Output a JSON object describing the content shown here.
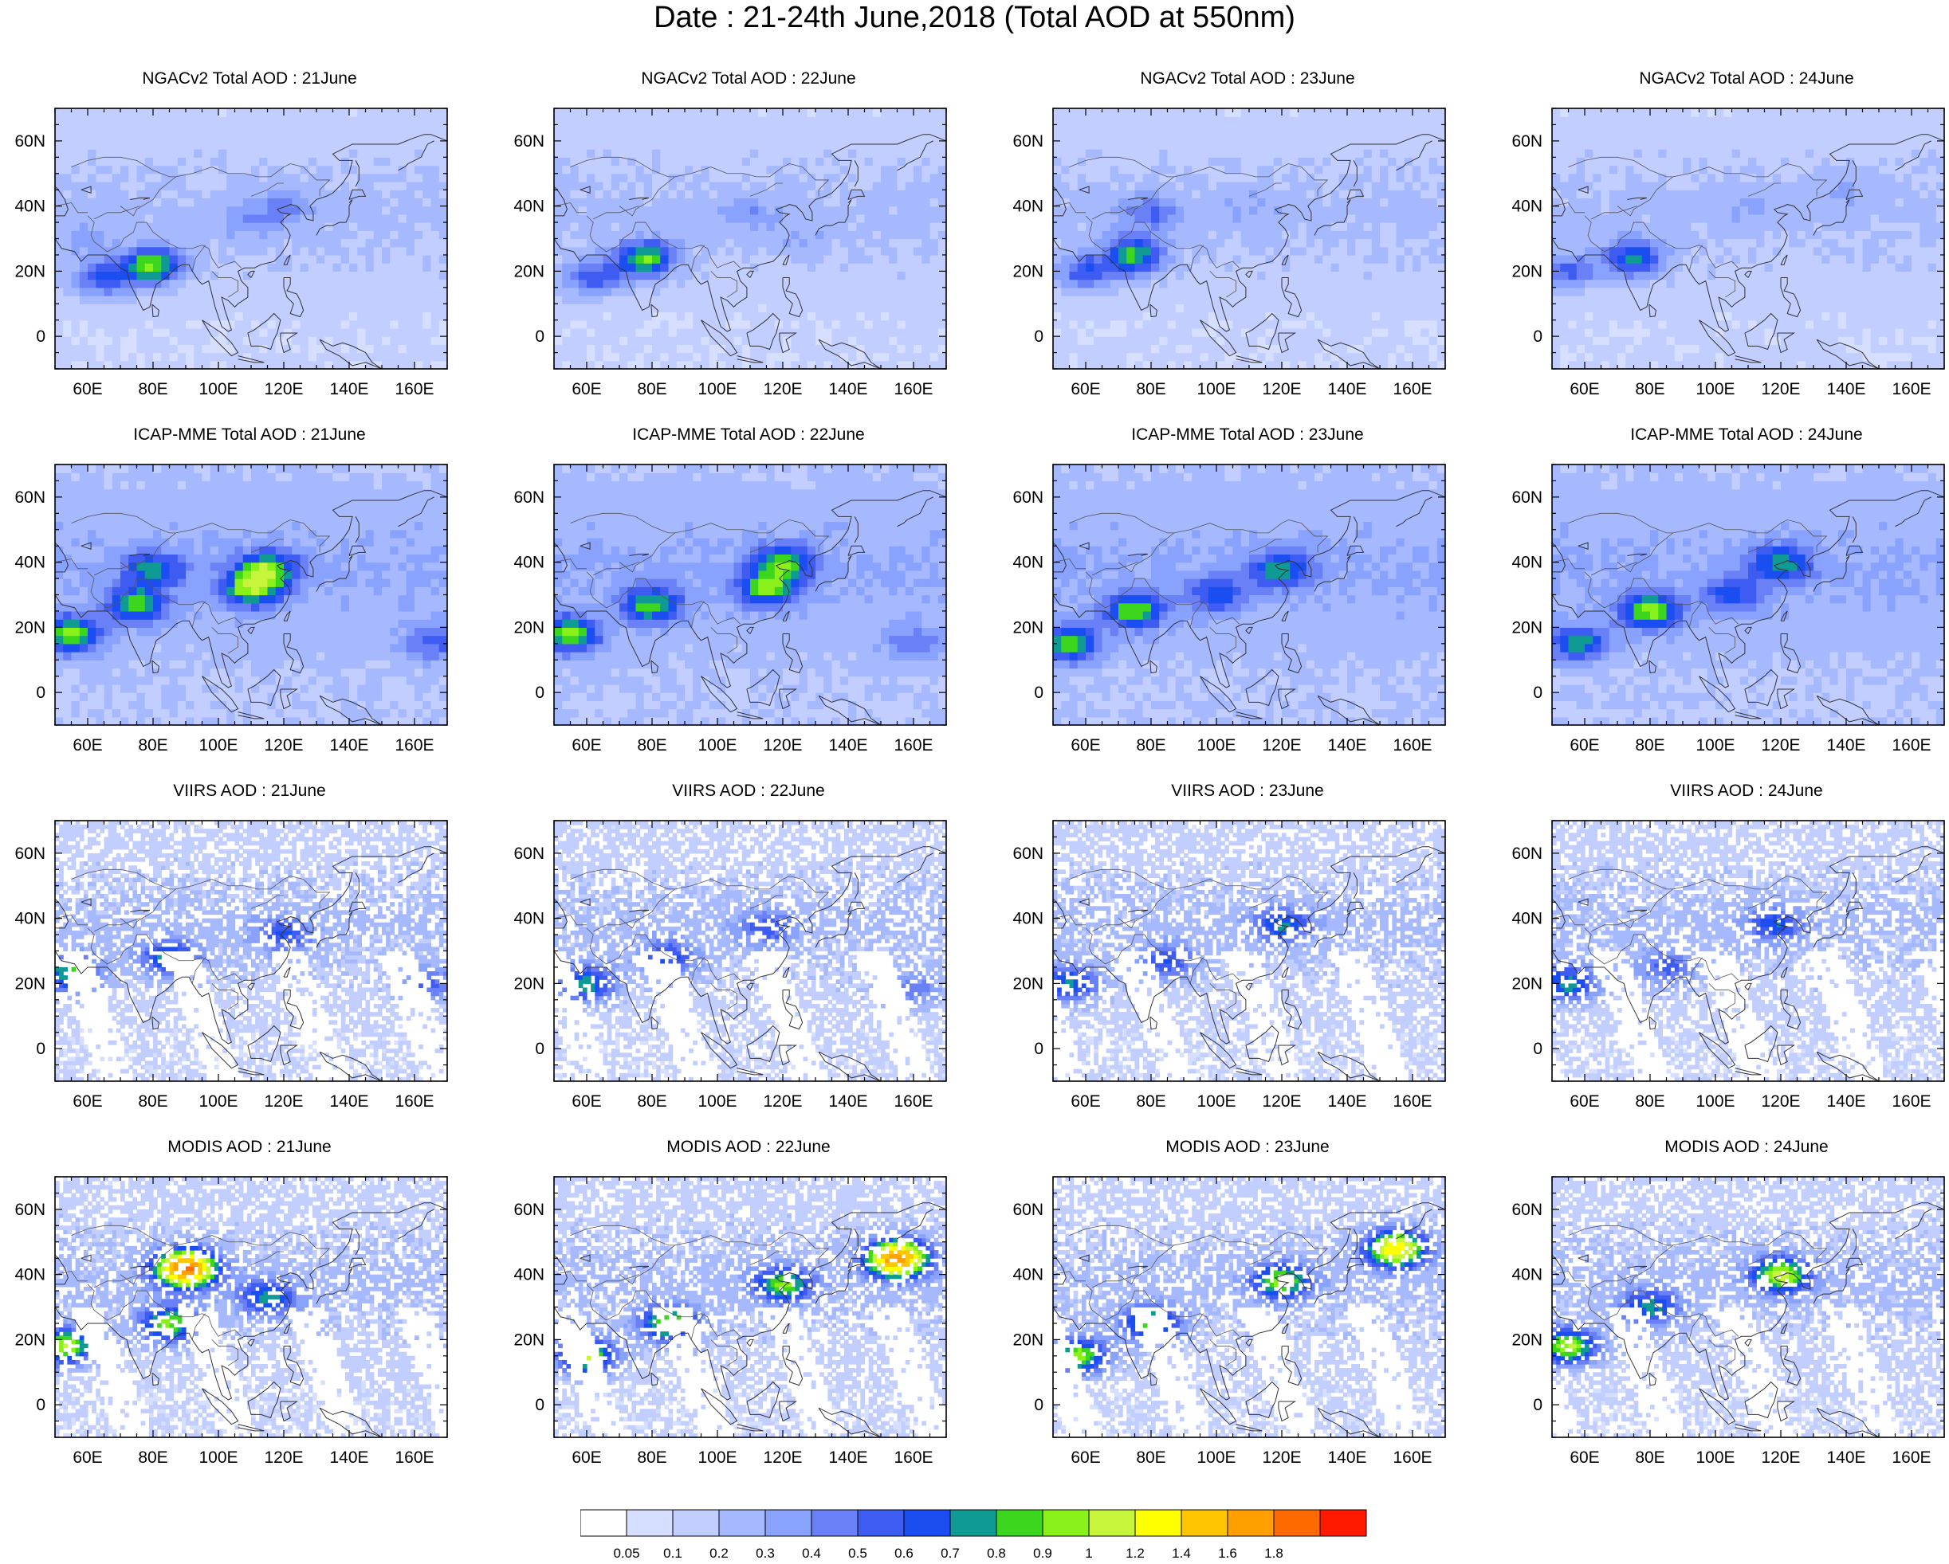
{
  "figure": {
    "title": "Date : 21-24th June,2018 (Total AOD at 550nm)"
  },
  "map": {
    "lon_labels": [
      "60E",
      "80E",
      "100E",
      "120E",
      "140E",
      "160E"
    ],
    "lat_labels": [
      "60N",
      "40N",
      "20N",
      "0"
    ],
    "lon_range": [
      50,
      170
    ],
    "lat_range": [
      -10,
      70
    ]
  },
  "colorbar": {
    "labels": [
      "0.05",
      "0.1",
      "0.2",
      "0.3",
      "0.4",
      "0.5",
      "0.6",
      "0.7",
      "0.8",
      "0.9",
      "1",
      "1.2",
      "1.4",
      "1.6",
      "1.8"
    ],
    "colors": [
      "#ffffff",
      "#d6dfff",
      "#c1ceff",
      "#a6b9ff",
      "#89a2fe",
      "#6a80f7",
      "#3f5cf2",
      "#1a4ef0",
      "#0f9a94",
      "#3cd61e",
      "#8af01a",
      "#c6f53c",
      "#ffff00",
      "#ffc500",
      "#ff9f00",
      "#ff6a00",
      "#ff1a00"
    ]
  },
  "chart_data": {
    "type": "heatmap",
    "title": "Date : 21-24th June,2018 (Total AOD at 550nm)",
    "variable": "Total AOD at 550nm",
    "x_range": [
      50,
      170
    ],
    "y_range": [
      -10,
      70
    ],
    "x_ticks": [
      "60E",
      "80E",
      "100E",
      "120E",
      "140E",
      "160E"
    ],
    "y_ticks": [
      "60N",
      "40N",
      "20N",
      "0"
    ],
    "color_levels": [
      0.05,
      0.1,
      0.2,
      0.3,
      0.4,
      0.5,
      0.6,
      0.7,
      0.8,
      0.9,
      1,
      1.2,
      1.4,
      1.6,
      1.8
    ],
    "panels": [
      {
        "title": "NGACv2 Total AOD : 21June",
        "source": "NGACv2",
        "date": "21June",
        "hotspots": [
          [
            80,
            22,
            0.9
          ],
          [
            65,
            18,
            0.6
          ],
          [
            110,
            35,
            0.3
          ],
          [
            120,
            40,
            0.35
          ],
          [
            60,
            30,
            0.3
          ]
        ]
      },
      {
        "title": "NGACv2 Total AOD : 22June",
        "source": "NGACv2",
        "date": "22June",
        "hotspots": [
          [
            78,
            24,
            0.85
          ],
          [
            62,
            18,
            0.55
          ],
          [
            110,
            38,
            0.3
          ],
          [
            125,
            30,
            0.25
          ]
        ]
      },
      {
        "title": "NGACv2 Total AOD : 23June",
        "source": "NGACv2",
        "date": "23June",
        "hotspots": [
          [
            75,
            25,
            0.8
          ],
          [
            60,
            20,
            0.55
          ],
          [
            80,
            38,
            0.45
          ],
          [
            110,
            40,
            0.25
          ]
        ]
      },
      {
        "title": "NGACv2 Total AOD : 24June",
        "source": "NGACv2",
        "date": "24June",
        "hotspots": [
          [
            75,
            24,
            0.7
          ],
          [
            55,
            20,
            0.5
          ],
          [
            110,
            40,
            0.25
          ],
          [
            140,
            45,
            0.25
          ]
        ]
      },
      {
        "title": "ICAP-MME Total AOD : 21June",
        "source": "ICAP-MME",
        "date": "21June",
        "hotspots": [
          [
            55,
            18,
            0.85
          ],
          [
            75,
            27,
            0.75
          ],
          [
            110,
            32,
            0.8
          ],
          [
            115,
            38,
            0.75
          ],
          [
            80,
            38,
            0.6
          ],
          [
            165,
            15,
            0.45
          ]
        ]
      },
      {
        "title": "ICAP-MME Total AOD : 22June",
        "source": "ICAP-MME",
        "date": "22June",
        "hotspots": [
          [
            55,
            18,
            0.85
          ],
          [
            80,
            27,
            0.75
          ],
          [
            115,
            32,
            0.75
          ],
          [
            120,
            40,
            0.7
          ],
          [
            160,
            15,
            0.4
          ]
        ]
      },
      {
        "title": "ICAP-MME Total AOD : 23June",
        "source": "ICAP-MME",
        "date": "23June",
        "hotspots": [
          [
            55,
            15,
            0.8
          ],
          [
            75,
            25,
            0.8
          ],
          [
            120,
            38,
            0.65
          ],
          [
            100,
            30,
            0.55
          ]
        ]
      },
      {
        "title": "ICAP-MME Total AOD : 24June",
        "source": "ICAP-MME",
        "date": "24June",
        "hotspots": [
          [
            58,
            15,
            0.7
          ],
          [
            80,
            25,
            0.85
          ],
          [
            120,
            40,
            0.65
          ],
          [
            105,
            30,
            0.5
          ]
        ]
      },
      {
        "title": "VIIRS AOD : 21June",
        "source": "VIIRS",
        "date": "21June",
        "hotspots": [
          [
            55,
            23,
            0.8
          ],
          [
            85,
            28,
            0.7
          ],
          [
            120,
            35,
            0.55
          ],
          [
            165,
            20,
            0.5
          ]
        ]
      },
      {
        "title": "VIIRS AOD : 22June",
        "source": "VIIRS",
        "date": "22June",
        "hotspots": [
          [
            60,
            20,
            0.75
          ],
          [
            85,
            28,
            0.6
          ],
          [
            115,
            37,
            0.5
          ],
          [
            160,
            18,
            0.45
          ]
        ]
      },
      {
        "title": "VIIRS AOD : 23June",
        "source": "VIIRS",
        "date": "23June",
        "hotspots": [
          [
            55,
            20,
            0.7
          ],
          [
            120,
            38,
            0.65
          ],
          [
            85,
            27,
            0.55
          ]
        ]
      },
      {
        "title": "VIIRS AOD : 24June",
        "source": "VIIRS",
        "date": "24June",
        "hotspots": [
          [
            55,
            20,
            0.75
          ],
          [
            118,
            38,
            0.6
          ],
          [
            85,
            25,
            0.5
          ]
        ]
      },
      {
        "title": "MODIS AOD : 21June",
        "source": "MODIS",
        "date": "21June",
        "hotspots": [
          [
            53,
            18,
            1.0
          ],
          [
            85,
            25,
            0.9
          ],
          [
            115,
            33,
            0.7
          ],
          [
            90,
            42,
            1.8
          ]
        ]
      },
      {
        "title": "MODIS AOD : 22June",
        "source": "MODIS",
        "date": "22June",
        "hotspots": [
          [
            60,
            15,
            1.0
          ],
          [
            85,
            25,
            0.9
          ],
          [
            120,
            37,
            0.85
          ],
          [
            155,
            45,
            1.7
          ]
        ]
      },
      {
        "title": "MODIS AOD : 23June",
        "source": "MODIS",
        "date": "23June",
        "hotspots": [
          [
            58,
            15,
            0.95
          ],
          [
            80,
            25,
            0.85
          ],
          [
            120,
            38,
            0.9
          ],
          [
            155,
            48,
            1.3
          ]
        ]
      },
      {
        "title": "MODIS AOD : 24June",
        "source": "MODIS",
        "date": "24June",
        "hotspots": [
          [
            55,
            18,
            1.0
          ],
          [
            120,
            40,
            1.0
          ],
          [
            80,
            30,
            0.7
          ]
        ]
      }
    ]
  }
}
